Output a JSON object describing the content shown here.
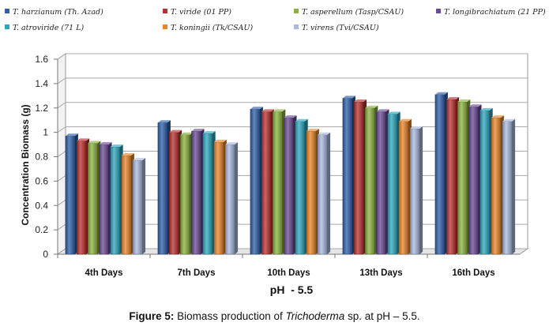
{
  "caption": {
    "label": "Figure 5:",
    "text_before": " Biomass production of ",
    "italic": "Trichoderma",
    "text_after": " sp. at pH – 5.5."
  },
  "chart_data": {
    "type": "bar",
    "title": "",
    "xlabel": "pH  - 5.5",
    "ylabel": "Concentration Biomass (g)",
    "ylim": [
      0,
      1.6
    ],
    "yticks": [
      "0",
      "0.2",
      "0.4",
      "0.6",
      "0.8",
      "1",
      "1.2",
      "1.4",
      "1.6"
    ],
    "grid": true,
    "legend_position": "top",
    "categories": [
      "4th Days",
      "7th Days",
      "10th Days",
      "13th Days",
      "16th Days"
    ],
    "series": [
      {
        "name": "T. harzianum (Th. Azad)",
        "color": "#2e5fa8",
        "values": [
          0.97,
          1.08,
          1.19,
          1.28,
          1.31
        ]
      },
      {
        "name": "T. viride (01 PP)",
        "color": "#b8312f",
        "values": [
          0.93,
          1.0,
          1.17,
          1.25,
          1.27
        ]
      },
      {
        "name": "T. asperellum (Tasp/CSAU)",
        "color": "#8bb23f",
        "values": [
          0.91,
          0.98,
          1.17,
          1.2,
          1.25
        ]
      },
      {
        "name": "T. longibrachiatum (21 PP)",
        "color": "#6a4a94",
        "values": [
          0.9,
          1.01,
          1.12,
          1.17,
          1.21
        ]
      },
      {
        "name": "T. atroviride (71 L)",
        "color": "#2da7bf",
        "values": [
          0.88,
          0.99,
          1.09,
          1.15,
          1.18
        ]
      },
      {
        "name": "T. koningii (Tk/CSAU)",
        "color": "#e8862a",
        "values": [
          0.81,
          0.92,
          1.01,
          1.09,
          1.12
        ]
      },
      {
        "name": "T. virens (Tvi/CSAU)",
        "color": "#a9b9de",
        "values": [
          0.77,
          0.9,
          0.98,
          1.03,
          1.09
        ]
      }
    ]
  }
}
